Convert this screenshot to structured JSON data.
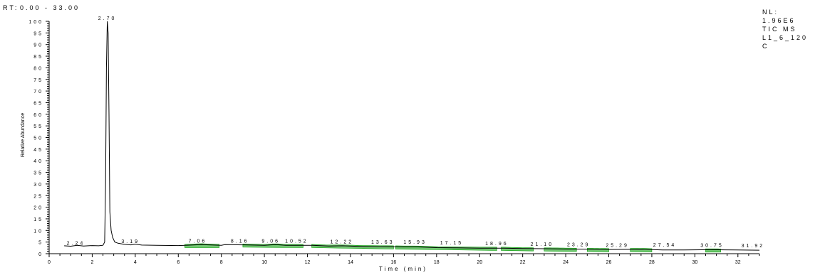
{
  "header": {
    "rt_label": "RT:",
    "rt_range": "0.00 - 33.00"
  },
  "info": {
    "nl_label": "NL:",
    "nl_value": "1.96E6",
    "trace": "TIC MS",
    "sample_line1": "L1_6_120",
    "sample_line2": "C"
  },
  "colors": {
    "trace": "#000000",
    "peak_fill": "#009a00",
    "rt_range": "#1a1aff",
    "axis": "#000000"
  },
  "chart_data": {
    "type": "line",
    "title": "",
    "xlabel": "Time (min)",
    "ylabel": "Relative Abundance",
    "xlim": [
      0,
      33
    ],
    "ylim": [
      0,
      100
    ],
    "x_ticks": [
      0,
      2,
      4,
      6,
      8,
      10,
      12,
      14,
      16,
      18,
      20,
      22,
      24,
      26,
      28,
      30,
      32
    ],
    "y_ticks": [
      0,
      5,
      10,
      15,
      20,
      25,
      30,
      35,
      40,
      45,
      50,
      55,
      60,
      65,
      70,
      75,
      80,
      85,
      90,
      95,
      100
    ],
    "grid": false,
    "series": [
      {
        "points": [
          [
            0.7,
            3.4
          ],
          [
            1.0,
            3.2
          ],
          [
            1.3,
            3.6
          ],
          [
            1.6,
            3.3
          ],
          [
            2.0,
            3.5
          ],
          [
            2.3,
            3.4
          ],
          [
            2.5,
            3.6
          ],
          [
            2.58,
            5
          ],
          [
            2.62,
            30
          ],
          [
            2.66,
            80
          ],
          [
            2.7,
            100
          ],
          [
            2.74,
            95
          ],
          [
            2.78,
            60
          ],
          [
            2.82,
            18
          ],
          [
            2.88,
            10
          ],
          [
            2.95,
            7
          ],
          [
            3.05,
            5
          ],
          [
            3.2,
            4.5
          ],
          [
            3.5,
            4.0
          ],
          [
            3.8,
            3.8
          ],
          [
            4.0,
            4.1
          ],
          [
            4.3,
            3.7
          ],
          [
            5.0,
            3.6
          ],
          [
            6.0,
            3.5
          ],
          [
            7.06,
            3.9
          ],
          [
            8.0,
            3.6
          ],
          [
            8.16,
            3.9
          ],
          [
            9.06,
            3.8
          ],
          [
            10.0,
            3.6
          ],
          [
            10.52,
            3.9
          ],
          [
            11.0,
            3.6
          ],
          [
            12.22,
            3.6
          ],
          [
            13.0,
            3.3
          ],
          [
            13.63,
            3.4
          ],
          [
            14.5,
            3.1
          ],
          [
            15.93,
            3.0
          ],
          [
            16.5,
            2.9
          ],
          [
            17.15,
            2.9
          ],
          [
            18.0,
            2.6
          ],
          [
            18.96,
            2.5
          ],
          [
            20.0,
            2.4
          ],
          [
            21.1,
            2.4
          ],
          [
            22.0,
            2.2
          ],
          [
            23.29,
            2.1
          ],
          [
            24.0,
            2.0
          ],
          [
            25.29,
            1.9
          ],
          [
            26.0,
            1.8
          ],
          [
            27.54,
            1.9
          ],
          [
            28.5,
            1.6
          ],
          [
            29.5,
            1.6
          ],
          [
            30.75,
            1.7
          ],
          [
            31.92,
            1.6
          ],
          [
            33.0,
            1.5
          ]
        ]
      }
    ],
    "peak_labels": [
      {
        "x": 1.24,
        "y": 3.2,
        "text": "2.24"
      },
      {
        "x": 2.7,
        "y": 100,
        "text": "2.70"
      },
      {
        "x": 3.78,
        "y": 4.0,
        "text": "3.19"
      },
      {
        "x": 6.9,
        "y": 4.2,
        "text": "7.06"
      },
      {
        "x": 8.86,
        "y": 4.2,
        "text": "8.16"
      },
      {
        "x": 10.3,
        "y": 4.2,
        "text": "9.06"
      },
      {
        "x": 11.5,
        "y": 4.2,
        "text": "10.52"
      },
      {
        "x": 13.6,
        "y": 3.8,
        "text": "12.22"
      },
      {
        "x": 15.5,
        "y": 3.6,
        "text": "13.63"
      },
      {
        "x": 17.0,
        "y": 3.6,
        "text": "15.93"
      },
      {
        "x": 18.7,
        "y": 3.3,
        "text": "17.15"
      },
      {
        "x": 20.8,
        "y": 3.0,
        "text": "18.96"
      },
      {
        "x": 22.9,
        "y": 2.8,
        "text": "21.10"
      },
      {
        "x": 24.6,
        "y": 2.6,
        "text": "23.29"
      },
      {
        "x": 26.4,
        "y": 2.3,
        "text": "25.29"
      },
      {
        "x": 28.6,
        "y": 2.4,
        "text": "27.54"
      },
      {
        "x": 30.8,
        "y": 2.3,
        "text": "30.75"
      },
      {
        "x": 32.7,
        "y": 2.2,
        "text": "31.92"
      }
    ],
    "highlighted_regions": [
      [
        6.3,
        7.9
      ],
      [
        9.0,
        11.8
      ],
      [
        12.2,
        16.0
      ],
      [
        16.1,
        20.8
      ],
      [
        21.0,
        22.5
      ],
      [
        23.0,
        24.5
      ],
      [
        25.0,
        26.0
      ],
      [
        27.0,
        28.0
      ],
      [
        30.5,
        31.2
      ]
    ]
  }
}
